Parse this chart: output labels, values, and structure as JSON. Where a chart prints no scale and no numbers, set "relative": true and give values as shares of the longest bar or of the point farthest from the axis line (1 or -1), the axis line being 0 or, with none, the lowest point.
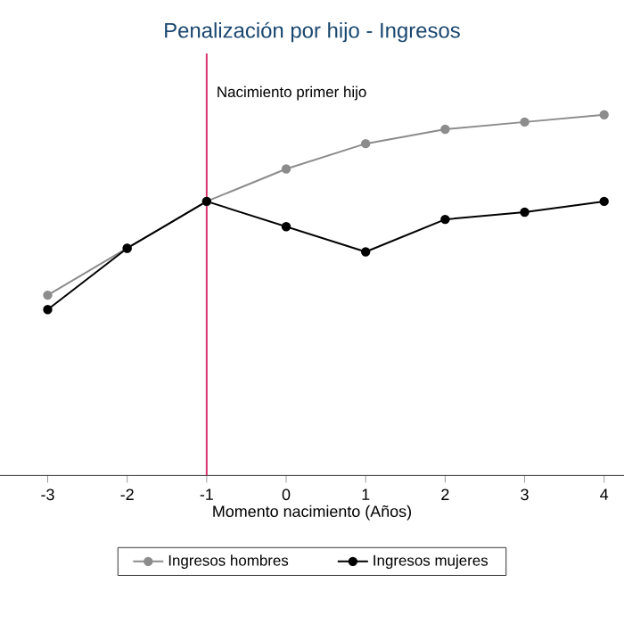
{
  "chart_data": {
    "type": "line",
    "title": "Penalización por hijo - Ingresos",
    "xlabel": "Momento nacimiento (Años)",
    "relative": true,
    "x": [
      -3,
      -2,
      -1,
      0,
      1,
      2,
      3,
      4
    ],
    "xlim": [
      -3.6,
      4.25
    ],
    "xticks": [
      -3,
      -2,
      -1,
      0,
      1,
      2,
      3,
      4
    ],
    "tick_labels": "x",
    "series": [
      {
        "name": "Ingresos hombres",
        "color": "#8c8c8c",
        "values": [
          0.5,
          0.63,
          0.76,
          0.85,
          0.92,
          0.96,
          0.98,
          1.0
        ]
      },
      {
        "name": "Ingresos mujeres",
        "color": "#000000",
        "values": [
          0.46,
          0.63,
          0.76,
          0.69,
          0.62,
          0.71,
          0.73,
          0.76
        ]
      }
    ],
    "ref_lines": [
      {
        "axis": "x",
        "value": -1,
        "label": "Nacimiento primer hijo",
        "color": "#d6336c"
      }
    ],
    "marker": "circle",
    "line_style": "solid",
    "legend": "bottom"
  }
}
